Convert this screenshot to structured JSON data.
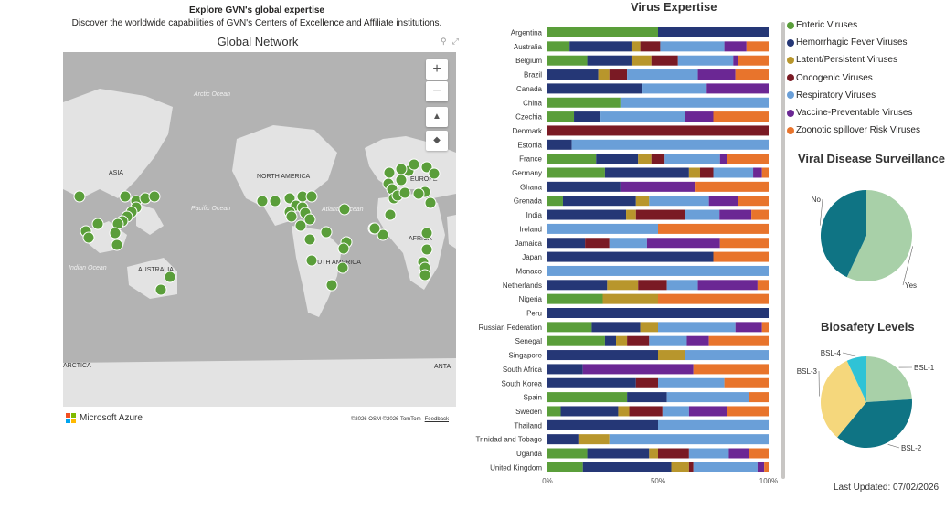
{
  "header": {
    "title": "Explore GVN's global expertise",
    "subtitle": "Discover the worldwide capabilities of GVN's Centers of Excellence and Affiliate institutions."
  },
  "map": {
    "title": "Global Network",
    "labels": {
      "arctic": "Arctic Ocean",
      "asia": "ASIA",
      "pacific": "Pacific Ocean",
      "north_america": "NORTH AMERICA",
      "atlantic": "Atlantic Ocean",
      "europe": "EUROPE",
      "africa": "AFRICA",
      "indian": "Indian Ocean",
      "australia": "AUSTRALIA",
      "south_america": "SOUTH AMERICA",
      "antarctica_left": "ARCTICA",
      "antarctica_right": "ANTA"
    },
    "controls": {
      "zoom_in": "+",
      "zoom_out": "−",
      "tilt": "▲",
      "compass": "◆"
    },
    "icons": [
      "filter-icon",
      "focus-mode-icon"
    ],
    "brand": "Microsoft Azure",
    "copyright": "©2026 OSM  ©2026 TomTom",
    "feedback": "Feedback",
    "marker_color": "#5a9e3a"
  },
  "chart_data": [
    {
      "type": "bar",
      "orientation": "horizontal-stacked-100",
      "title": "Virus Expertise",
      "x_ticks": [
        "0%",
        "50%",
        "100%"
      ],
      "categories": [
        "Argentina",
        "Australia",
        "Belgium",
        "Brazil",
        "Canada",
        "China",
        "Czechia",
        "Denmark",
        "Estonia",
        "France",
        "Germany",
        "Ghana",
        "Grenada",
        "India",
        "Ireland",
        "Jamaica",
        "Japan",
        "Monaco",
        "Netherlands",
        "Nigeria",
        "Peru",
        "Russian Federation",
        "Senegal",
        "Singapore",
        "South Africa",
        "South Korea",
        "Spain",
        "Sweden",
        "Thailand",
        "Trinidad and Tobago",
        "Uganda",
        "United Kingdom"
      ],
      "series": [
        {
          "name": "Enteric Viruses",
          "color": "#5a9e3a",
          "values": [
            50,
            10,
            18,
            0,
            0,
            33,
            12,
            0,
            0,
            22,
            26,
            0,
            7,
            0,
            0,
            0,
            0,
            0,
            0,
            25,
            0,
            20,
            26,
            0,
            0,
            0,
            36,
            6,
            0,
            0,
            18,
            16
          ]
        },
        {
          "name": "Hemorrhagic Fever Viruses",
          "color": "#253776",
          "values": [
            50,
            28,
            20,
            23,
            43,
            0,
            12,
            0,
            11,
            19,
            38,
            33,
            33,
            32,
            0,
            17,
            75,
            0,
            27,
            0,
            100,
            22,
            5,
            50,
            16,
            40,
            18,
            26,
            50,
            14,
            28,
            40
          ]
        },
        {
          "name": "Latent/Persistent Viruses",
          "color": "#b8962c",
          "values": [
            0,
            4,
            9,
            5,
            0,
            0,
            0,
            0,
            0,
            6,
            5,
            0,
            6,
            4,
            0,
            0,
            0,
            0,
            14,
            25,
            0,
            8,
            5,
            12,
            0,
            0,
            0,
            5,
            0,
            14,
            4,
            8
          ]
        },
        {
          "name": "Oncogenic Viruses",
          "color": "#7a1a24",
          "values": [
            0,
            9,
            12,
            8,
            0,
            0,
            0,
            100,
            0,
            6,
            6,
            0,
            0,
            20,
            0,
            11,
            0,
            0,
            13,
            0,
            0,
            0,
            10,
            0,
            0,
            10,
            0,
            15,
            0,
            0,
            14,
            2
          ]
        },
        {
          "name": "Respiratory Viruses",
          "color": "#6a9fd8",
          "values": [
            0,
            29,
            25,
            32,
            29,
            67,
            38,
            0,
            89,
            25,
            18,
            0,
            27,
            14,
            50,
            17,
            0,
            100,
            14,
            0,
            0,
            35,
            17,
            38,
            0,
            30,
            37,
            12,
            50,
            72,
            18,
            29
          ]
        },
        {
          "name": "Vaccine-Preventable Viruses",
          "color": "#6b2794",
          "values": [
            0,
            10,
            2,
            17,
            28,
            0,
            13,
            0,
            0,
            3,
            4,
            34,
            13,
            13,
            0,
            33,
            0,
            0,
            27,
            0,
            0,
            12,
            10,
            0,
            50,
            0,
            0,
            17,
            0,
            0,
            9,
            3
          ]
        },
        {
          "name": "Zoonotic spillover Risk Viruses",
          "color": "#e8742c",
          "values": [
            0,
            10,
            14,
            15,
            0,
            0,
            25,
            0,
            0,
            19,
            3,
            33,
            14,
            7,
            50,
            22,
            25,
            0,
            5,
            50,
            0,
            3,
            27,
            0,
            34,
            20,
            9,
            19,
            0,
            0,
            9,
            2
          ]
        }
      ]
    },
    {
      "type": "pie",
      "title": "Viral Disease Surveillance",
      "slices": [
        {
          "label": "Yes",
          "value": 57,
          "color": "#a8d0a8"
        },
        {
          "label": "No",
          "value": 43,
          "color": "#0f7484"
        }
      ]
    },
    {
      "type": "pie",
      "title": "Biosafety Levels",
      "slices": [
        {
          "label": "BSL-1",
          "value": 24,
          "color": "#a8d0a8"
        },
        {
          "label": "BSL-2",
          "value": 37,
          "color": "#0f7484"
        },
        {
          "label": "BSL-3",
          "value": 32,
          "color": "#f5d77c"
        },
        {
          "label": "BSL-4",
          "value": 7,
          "color": "#2fc3d6"
        }
      ]
    }
  ],
  "footer": {
    "last_updated": "Last Updated: 07/02/2026"
  }
}
